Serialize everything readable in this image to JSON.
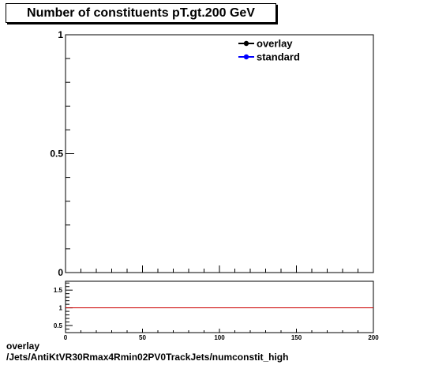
{
  "title": "Number of constituents pT.gt.200 GeV",
  "footer": {
    "label": "overlay",
    "path": "/Jets/AntiKtVR30Rmax4Rmin02PV0TrackJets/numconstit_high"
  },
  "chart_data": [
    {
      "type": "line",
      "title": "Number of constituents pT.gt.200 GeV",
      "xlabel": "",
      "ylabel": "",
      "xlim": [
        0,
        200
      ],
      "ylim": [
        0,
        1
      ],
      "x_ticks": [
        0,
        50,
        100,
        150,
        200
      ],
      "y_ticks": [
        0,
        0.5,
        1
      ],
      "y_tick_labels": [
        "0",
        "0.5",
        "1"
      ],
      "legend_placement": "top-right",
      "series": [
        {
          "name": "overlay",
          "color": "#000000",
          "marker": "filled-circle",
          "values": []
        },
        {
          "name": "standard",
          "color": "#0000ff",
          "marker": "filled-circle",
          "values": []
        }
      ]
    },
    {
      "type": "line",
      "title": "",
      "xlim": [
        0,
        200
      ],
      "ylim": [
        0.3,
        1.75
      ],
      "x_ticks": [
        0,
        50,
        100,
        150,
        200
      ],
      "x_tick_labels": [
        "0",
        "50",
        "100",
        "150",
        "200"
      ],
      "y_ticks": [
        0.5,
        1,
        1.5
      ],
      "y_tick_labels": [
        "0.5",
        "1",
        "1.5"
      ],
      "reference_line": {
        "y": 1,
        "color": "#cc0000"
      }
    }
  ]
}
